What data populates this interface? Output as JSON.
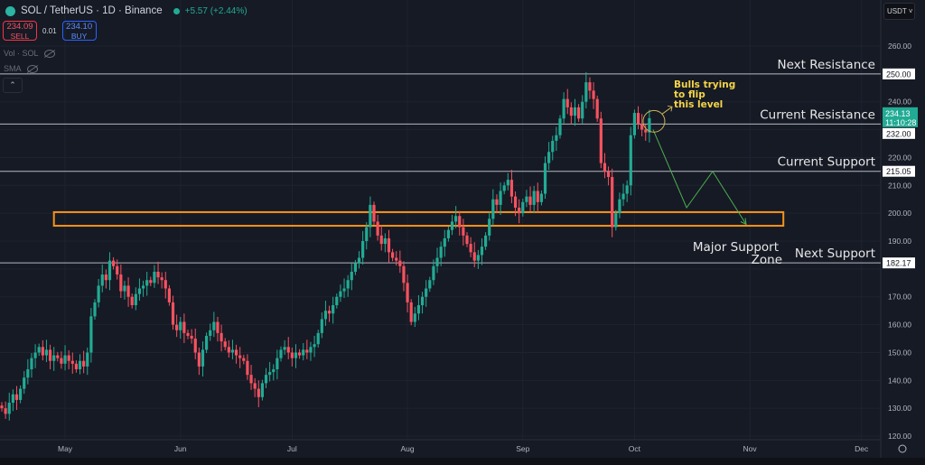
{
  "header": {
    "symbol": "SOL / TetherUS · 1D · Binance",
    "change": "+5.57 (+2.44%)",
    "sell_price": "234.09",
    "sell_label": "SELL",
    "spread": "0.01",
    "buy_price": "234.10",
    "buy_label": "BUY",
    "indicators": [
      "Vol · SOL",
      "SMA"
    ],
    "collapse_icon": "chevron-up-icon",
    "currency": "USDT"
  },
  "colors": {
    "up": "#22ab94",
    "down": "#f7525f",
    "zone": "#f7931a",
    "level": "#d1d4dc",
    "note": "#f5d547",
    "path": "#4caf50",
    "background": "#161a25"
  },
  "chart_data": {
    "type": "candlestick",
    "symbol": "SOLUSDT",
    "interval": "1D",
    "ylim": [
      117,
      266
    ],
    "y_ticks": [
      260,
      250,
      240,
      230,
      220,
      210,
      200,
      190,
      180,
      170,
      160,
      150,
      140,
      130,
      120
    ],
    "x_ticks": [
      {
        "label": "May",
        "day": 17
      },
      {
        "label": "Jun",
        "day": 48
      },
      {
        "label": "Jul",
        "day": 78
      },
      {
        "label": "Aug",
        "day": 109
      },
      {
        "label": "Sep",
        "day": 140
      },
      {
        "label": "Oct",
        "day": 170
      },
      {
        "label": "Nov",
        "day": 201
      },
      {
        "label": "Dec",
        "day": 231
      }
    ],
    "first_open": 131,
    "closes": [
      130,
      128,
      132,
      135,
      133,
      137,
      141,
      144,
      148,
      150,
      152,
      149,
      151,
      147,
      149,
      148,
      146,
      149,
      147,
      146,
      144,
      147,
      145,
      150,
      163,
      168,
      174,
      178,
      176,
      183,
      181,
      178,
      172,
      174,
      170,
      167,
      171,
      173,
      174,
      176,
      175,
      179,
      177,
      176,
      173,
      168,
      160,
      158,
      161,
      157,
      156,
      155,
      150,
      145,
      151,
      156,
      158,
      161,
      157,
      154,
      152,
      150,
      151,
      149,
      148,
      147,
      142,
      139,
      137,
      134,
      139,
      142,
      143,
      144,
      148,
      151,
      152,
      150,
      148,
      150,
      149,
      151,
      150,
      152,
      153,
      157,
      162,
      165,
      164,
      167,
      170,
      172,
      173,
      176,
      179,
      182,
      184,
      190,
      195,
      203,
      197,
      192,
      189,
      191,
      186,
      184,
      183,
      181,
      175,
      168,
      161,
      164,
      167,
      170,
      173,
      176,
      181,
      184,
      188,
      191,
      194,
      197,
      199,
      195,
      192,
      189,
      186,
      183,
      185,
      188,
      192,
      198,
      205,
      203,
      208,
      210,
      212,
      206,
      202,
      200,
      204,
      206,
      203,
      208,
      204,
      207,
      218,
      222,
      226,
      228,
      234,
      241,
      238,
      235,
      238,
      234,
      240,
      247,
      244,
      241,
      234,
      218,
      215,
      213,
      195,
      200,
      205,
      207,
      210,
      228,
      236,
      232,
      230,
      229,
      234.13
    ],
    "last_price": "234.13",
    "countdown": "11:10:28",
    "levels": [
      {
        "price": 250,
        "price_label": "250.00",
        "label": "Next Resistance"
      },
      {
        "price": 232,
        "price_label": "232.00",
        "label": "Current Resistance"
      },
      {
        "price": 215.05,
        "price_label": "215.05",
        "label": "Current Support"
      },
      {
        "price": 182.17,
        "price_label": "182.17",
        "label": "Next Support"
      }
    ],
    "zone": {
      "low": 195.5,
      "high": 200.4,
      "start_day": 14,
      "end_day": 210,
      "label_line1": "Major Support",
      "label_line2": "Zone"
    },
    "projection": [
      {
        "day": 175,
        "price": 230
      },
      {
        "day": 184,
        "price": 202
      },
      {
        "day": 191,
        "price": 215
      },
      {
        "day": 200,
        "price": 196
      }
    ],
    "note": {
      "lines": [
        "Bulls trying",
        "to flip",
        "this level"
      ],
      "circle_day": 174.5,
      "circle_price": 233
    }
  }
}
